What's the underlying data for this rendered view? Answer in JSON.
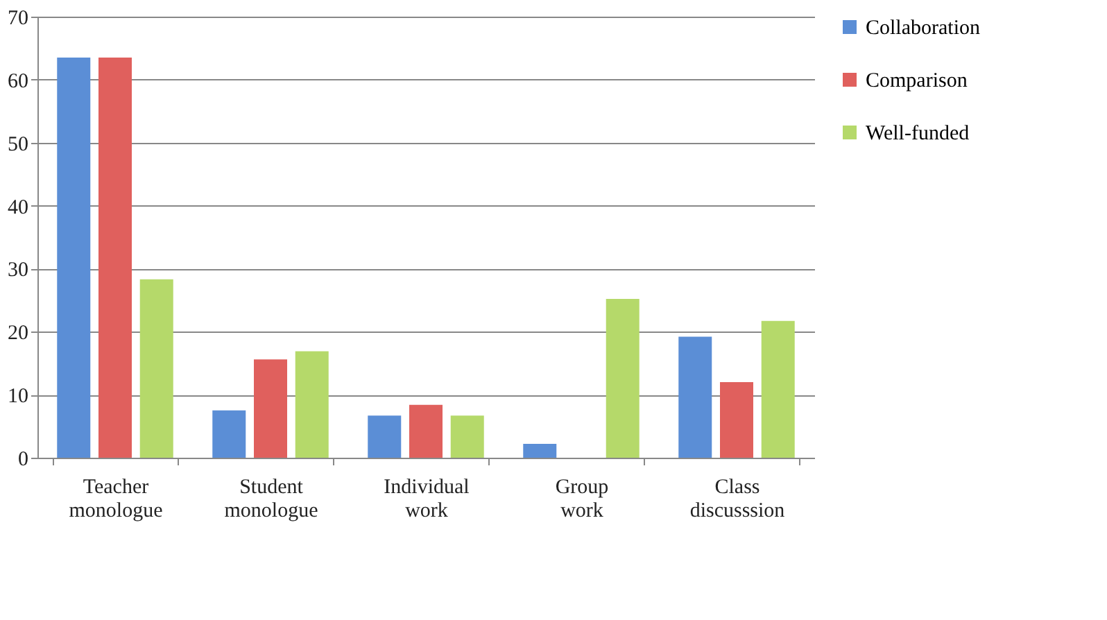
{
  "chart_data": {
    "type": "bar",
    "categories": [
      "Teacher monologue",
      "Student monologue",
      "Individual work",
      "Group work",
      "Class discusssion"
    ],
    "series": [
      {
        "name": "Collaboration",
        "color": "#5b8ed6",
        "values": [
          63.5,
          7.5,
          6.7,
          2.2,
          19.2
        ]
      },
      {
        "name": "Comparison",
        "color": "#e0605d",
        "values": [
          63.5,
          15.6,
          8.4,
          0,
          12.0
        ]
      },
      {
        "name": "Well-funded",
        "color": "#b5d96a",
        "values": [
          28.3,
          16.9,
          6.7,
          25.2,
          21.7
        ]
      }
    ],
    "ylim": [
      0,
      70
    ],
    "yticks": [
      0,
      10,
      20,
      30,
      40,
      50,
      60,
      70
    ],
    "grid": "y",
    "legend": "right"
  }
}
